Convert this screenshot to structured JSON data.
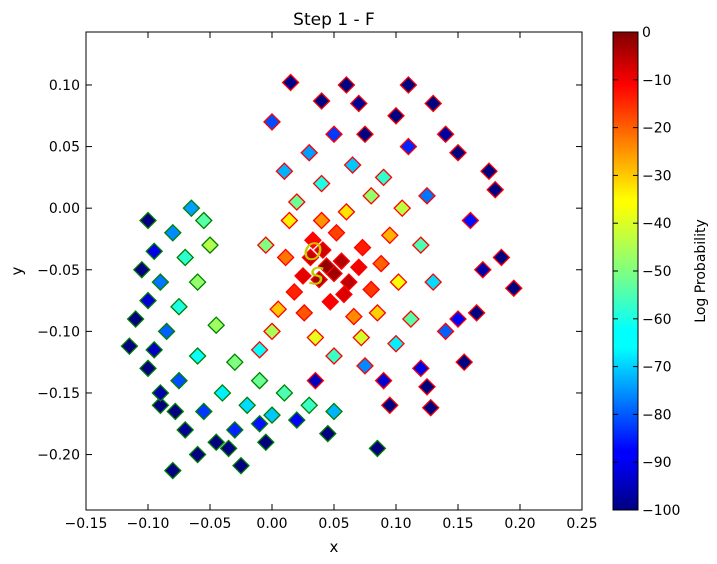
{
  "chart_data": {
    "type": "scatter",
    "title": "Step 1 - F",
    "xlabel": "x",
    "ylabel": "y",
    "xlim": [
      -0.15,
      0.25
    ],
    "ylim": [
      -0.245,
      0.143
    ],
    "xticks": [
      -0.15,
      -0.1,
      -0.05,
      0.0,
      0.05,
      0.1,
      0.15,
      0.2,
      0.25
    ],
    "xtick_labels": [
      "−0.15",
      "−0.10",
      "−0.05",
      "0.00",
      "0.05",
      "0.10",
      "0.15",
      "0.20",
      "0.25"
    ],
    "yticks": [
      0.1,
      0.05,
      0.0,
      -0.05,
      -0.1,
      -0.15,
      -0.2
    ],
    "ytick_labels": [
      "0.10",
      "0.05",
      "0.00",
      "−0.05",
      "−0.10",
      "−0.15",
      "−0.20"
    ],
    "grid": false,
    "marker": "diamond",
    "colorbar": {
      "label": "Log Probability",
      "colormap": "jet",
      "range": [
        -100,
        0
      ],
      "ticks": [
        0,
        -10,
        -20,
        -30,
        -40,
        -50,
        -60,
        -70,
        -80,
        -90,
        -100
      ],
      "tick_labels": [
        "0",
        "−10",
        "−20",
        "−30",
        "−40",
        "−50",
        "−60",
        "−70",
        "−80",
        "−90",
        "−100"
      ]
    },
    "series": [
      {
        "edgecolor": "#ff0000",
        "center": [
          0.05,
          -0.05
        ],
        "points": [
          [
            0.044,
            -0.047,
            -2
          ],
          [
            0.05,
            -0.053,
            -3
          ],
          [
            0.038,
            -0.058,
            -4
          ],
          [
            0.056,
            -0.043,
            -5
          ],
          [
            0.031,
            -0.04,
            -7
          ],
          [
            0.062,
            -0.06,
            -6
          ],
          [
            0.041,
            -0.034,
            -8
          ],
          [
            0.058,
            -0.07,
            -9
          ],
          [
            0.025,
            -0.055,
            -10
          ],
          [
            0.07,
            -0.048,
            -11
          ],
          [
            0.047,
            -0.076,
            -12
          ],
          [
            0.033,
            -0.026,
            -13
          ],
          [
            0.073,
            -0.032,
            -15
          ],
          [
            0.018,
            -0.068,
            -16
          ],
          [
            0.08,
            -0.066,
            -18
          ],
          [
            0.052,
            -0.02,
            -19
          ],
          [
            0.026,
            -0.085,
            -21
          ],
          [
            0.088,
            -0.045,
            -22
          ],
          [
            0.011,
            -0.04,
            -24
          ],
          [
            0.066,
            -0.088,
            -26
          ],
          [
            0.04,
            -0.01,
            -27
          ],
          [
            0.095,
            -0.022,
            -30
          ],
          [
            0.005,
            -0.082,
            -32
          ],
          [
            0.085,
            -0.085,
            -33
          ],
          [
            0.06,
            -0.003,
            -35
          ],
          [
            0.014,
            -0.01,
            -36
          ],
          [
            0.102,
            -0.06,
            -38
          ],
          [
            0.035,
            -0.105,
            -40
          ],
          [
            0.072,
            -0.105,
            -42
          ],
          [
            0.105,
            0.0,
            -44
          ],
          [
            0.0,
            -0.1,
            -46
          ],
          [
            0.08,
            0.01,
            -48
          ],
          [
            -0.005,
            -0.03,
            -50
          ],
          [
            0.02,
            0.005,
            -52
          ],
          [
            0.112,
            -0.09,
            -54
          ],
          [
            0.12,
            -0.03,
            -55
          ],
          [
            0.05,
            -0.12,
            -57
          ],
          [
            0.09,
            0.025,
            -58
          ],
          [
            0.04,
            0.02,
            -60
          ],
          [
            -0.01,
            -0.115,
            -62
          ],
          [
            0.1,
            -0.11,
            -64
          ],
          [
            0.13,
            -0.06,
            -66
          ],
          [
            0.065,
            0.035,
            -68
          ],
          [
            0.01,
            0.03,
            -70
          ],
          [
            0.03,
            0.045,
            -72
          ],
          [
            0.075,
            -0.128,
            -74
          ],
          [
            0.125,
            0.01,
            -76
          ],
          [
            0.14,
            -0.1,
            -78
          ],
          [
            0.0,
            0.07,
            -80
          ],
          [
            0.05,
            0.06,
            -82
          ],
          [
            0.11,
            0.05,
            -84
          ],
          [
            0.16,
            -0.01,
            -86
          ],
          [
            0.15,
            -0.09,
            -88
          ],
          [
            0.12,
            -0.13,
            -90
          ],
          [
            0.09,
            -0.14,
            -92
          ],
          [
            0.035,
            -0.14,
            -94
          ],
          [
            0.17,
            -0.05,
            -96
          ],
          [
            0.14,
            0.06,
            -97
          ],
          [
            0.07,
            0.085,
            -98
          ],
          [
            0.015,
            0.102,
            -99
          ],
          [
            0.18,
            0.015,
            -100
          ],
          [
            0.195,
            -0.065,
            -100
          ],
          [
            0.13,
            0.085,
            -100
          ],
          [
            0.06,
            0.1,
            -100
          ],
          [
            0.11,
            0.1,
            -100
          ],
          [
            0.175,
            0.03,
            -100
          ],
          [
            0.155,
            -0.125,
            -100
          ],
          [
            0.128,
            -0.162,
            -100
          ],
          [
            0.095,
            -0.16,
            -100
          ],
          [
            0.04,
            0.087,
            -100
          ],
          [
            0.15,
            0.045,
            -100
          ],
          [
            0.185,
            -0.04,
            -100
          ],
          [
            0.165,
            -0.085,
            -100
          ],
          [
            0.1,
            0.075,
            -100
          ],
          [
            0.075,
            0.06,
            -100
          ],
          [
            0.125,
            -0.145,
            -100
          ]
        ]
      },
      {
        "edgecolor": "#008000",
        "center": [
          -0.03,
          -0.1
        ],
        "points": [
          [
            -0.05,
            -0.03,
            -45
          ],
          [
            -0.06,
            -0.06,
            -48
          ],
          [
            -0.045,
            -0.095,
            -47
          ],
          [
            -0.03,
            -0.125,
            -50
          ],
          [
            -0.01,
            -0.14,
            -52
          ],
          [
            0.01,
            -0.15,
            -55
          ],
          [
            0.03,
            -0.16,
            -57
          ],
          [
            -0.055,
            -0.01,
            -54
          ],
          [
            -0.07,
            -0.04,
            -58
          ],
          [
            -0.075,
            -0.08,
            -60
          ],
          [
            -0.06,
            -0.12,
            -62
          ],
          [
            -0.04,
            -0.15,
            -64
          ],
          [
            -0.02,
            -0.16,
            -66
          ],
          [
            0.0,
            -0.168,
            -68
          ],
          [
            0.05,
            -0.165,
            -70
          ],
          [
            -0.065,
            0.0,
            -72
          ],
          [
            -0.08,
            -0.02,
            -74
          ],
          [
            -0.09,
            -0.06,
            -76
          ],
          [
            -0.085,
            -0.1,
            -78
          ],
          [
            -0.075,
            -0.14,
            -80
          ],
          [
            -0.055,
            -0.165,
            -82
          ],
          [
            -0.03,
            -0.18,
            -84
          ],
          [
            -0.01,
            -0.175,
            -86
          ],
          [
            0.02,
            -0.172,
            -88
          ],
          [
            -0.095,
            -0.035,
            -90
          ],
          [
            -0.1,
            -0.075,
            -92
          ],
          [
            -0.095,
            -0.115,
            -94
          ],
          [
            -0.09,
            -0.15,
            -96
          ],
          [
            -0.07,
            -0.18,
            -98
          ],
          [
            -0.045,
            -0.19,
            -100
          ],
          [
            -0.105,
            -0.05,
            -100
          ],
          [
            -0.11,
            -0.09,
            -100
          ],
          [
            -0.1,
            -0.13,
            -100
          ],
          [
            -0.09,
            -0.16,
            -100
          ],
          [
            -0.08,
            -0.213,
            -100
          ],
          [
            -0.025,
            -0.209,
            -100
          ],
          [
            -0.005,
            -0.19,
            -100
          ],
          [
            0.045,
            -0.183,
            -100
          ],
          [
            0.085,
            -0.195,
            -100
          ],
          [
            -0.1,
            -0.01,
            -100
          ],
          [
            -0.06,
            -0.2,
            -100
          ],
          [
            -0.035,
            -0.195,
            -100
          ],
          [
            -0.078,
            -0.165,
            -100
          ],
          [
            -0.115,
            -0.112,
            -100
          ]
        ]
      }
    ],
    "annotations": [
      {
        "text": "O",
        "x": 0.033,
        "y": -0.042,
        "color": "#c8c800"
      },
      {
        "text": "S",
        "x": 0.036,
        "y": -0.062,
        "color": "#c8c800"
      }
    ]
  }
}
